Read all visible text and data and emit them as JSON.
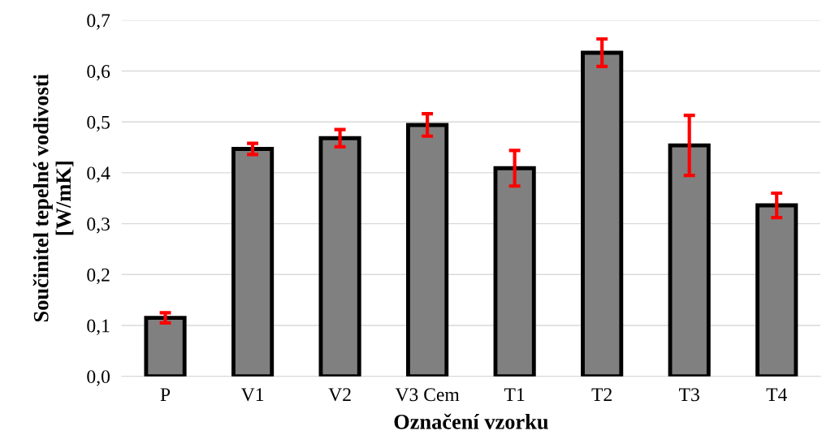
{
  "chart_data": {
    "type": "bar",
    "xlabel": "Označení vzorku",
    "ylabel": "Součinitel tepelné vodivosti\n[W/mK]",
    "categories": [
      "P",
      "V1",
      "V2",
      "V3 Cem",
      "T1",
      "T2",
      "T3",
      "T4"
    ],
    "values": [
      0.115,
      0.447,
      0.468,
      0.494,
      0.409,
      0.636,
      0.454,
      0.336
    ],
    "errors": [
      0.01,
      0.011,
      0.017,
      0.022,
      0.035,
      0.027,
      0.059,
      0.024
    ],
    "color": "#808080",
    "ylim": [
      0,
      0.7
    ],
    "yticks": [
      {
        "value": 0,
        "label": "0,0"
      },
      {
        "value": 0.1,
        "label": "0,1"
      },
      {
        "value": 0.2,
        "label": "0,2"
      },
      {
        "value": 0.3,
        "label": "0,3"
      },
      {
        "value": 0.4,
        "label": "0,4"
      },
      {
        "value": 0.5,
        "label": "0,5"
      },
      {
        "value": 0.6,
        "label": "0,6"
      },
      {
        "value": 0.7,
        "label": "0,7"
      }
    ],
    "grid": "y"
  }
}
